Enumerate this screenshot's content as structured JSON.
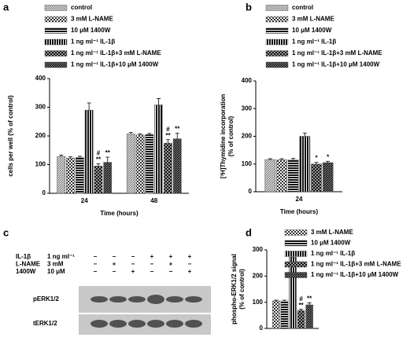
{
  "chart_data": [
    {
      "type": "bar",
      "panel_label": "a",
      "ylabel": [
        "cells per well (% of control)"
      ],
      "xlabel": "Time (hours)",
      "categories": [
        "24",
        "48"
      ],
      "ylim": [
        0,
        400
      ],
      "yticks": [
        0,
        100,
        200,
        300,
        400
      ],
      "series": [
        {
          "name": "control",
          "pattern": "diag-light",
          "values": [
            128,
            207
          ],
          "errors": [
            5,
            5
          ]
        },
        {
          "name": "3 mM L-NAME",
          "pattern": "checker",
          "values": [
            123,
            203
          ],
          "errors": [
            4,
            4
          ]
        },
        {
          "name": "10 μM 1400W",
          "pattern": "horizontal",
          "values": [
            125,
            205
          ],
          "errors": [
            4,
            4
          ]
        },
        {
          "name": "1 ng ml⁻¹ IL-1β",
          "pattern": "vertical",
          "values": [
            290,
            308
          ],
          "errors": [
            25,
            22
          ]
        },
        {
          "name": "1 ng ml⁻¹ IL-1β+3 mM L-NAME",
          "pattern": "checker-dark",
          "values": [
            95,
            175
          ],
          "errors": [
            8,
            12
          ],
          "labels": [
            [
              "#",
              "**"
            ],
            [
              "#",
              "**"
            ]
          ]
        },
        {
          "name": "1 ng ml⁻¹ IL-1β+10 μM 1400W",
          "pattern": "diag-dark",
          "values": [
            108,
            190
          ],
          "errors": [
            18,
            20
          ],
          "labels": [
            [
              "**"
            ],
            [
              "**"
            ]
          ]
        }
      ]
    },
    {
      "type": "bar",
      "panel_label": "b",
      "ylabel": [
        "[³H]Thymidine incorporation",
        "(% of control)"
      ],
      "xlabel": "Time (hours)",
      "categories": [
        "24"
      ],
      "ylim": [
        0,
        400
      ],
      "yticks": [
        0,
        100,
        200,
        300,
        400
      ],
      "series": [
        {
          "name": "control",
          "pattern": "diag-light",
          "values": [
            116
          ],
          "errors": [
            3
          ]
        },
        {
          "name": "3 mM L-NAME",
          "pattern": "checker",
          "values": [
            115
          ],
          "errors": [
            4
          ]
        },
        {
          "name": "10 μM 1400W",
          "pattern": "horizontal",
          "values": [
            115
          ],
          "errors": [
            5
          ]
        },
        {
          "name": "1 ng ml⁻¹ IL-1β",
          "pattern": "vertical",
          "values": [
            200
          ],
          "errors": [
            12
          ]
        },
        {
          "name": "1 ng ml⁻¹ IL-1β+3 mM L-NAME",
          "pattern": "checker-dark",
          "values": [
            100
          ],
          "errors": [
            6
          ],
          "labels": [
            [
              "*"
            ]
          ]
        },
        {
          "name": "1 ng ml⁻¹ IL-1β+10 μM 1400W",
          "pattern": "diag-dark",
          "values": [
            105
          ],
          "errors": [
            5
          ],
          "labels": [
            [
              "*"
            ]
          ]
        }
      ]
    },
    {
      "type": "bar",
      "panel_label": "d",
      "ylabel": [
        "phospho-ERK1/2 signal",
        "(% of control)"
      ],
      "categories": [
        null
      ],
      "ylim": [
        0,
        300
      ],
      "yticks": [
        0,
        100,
        200,
        300
      ],
      "series": [
        {
          "name": "3 mM L-NAME",
          "pattern": "checker",
          "values": [
            105
          ],
          "errors": [
            3
          ]
        },
        {
          "name": "10 μM 1400W",
          "pattern": "horizontal",
          "values": [
            105
          ],
          "errors": [
            3
          ]
        },
        {
          "name": "1 ng ml⁻¹ IL-1β",
          "pattern": "vertical",
          "values": [
            272
          ],
          "errors": [
            4
          ]
        },
        {
          "name": "1 ng ml⁻¹ IL-1β+3 mM L-NAME",
          "pattern": "checker-dark",
          "values": [
            68
          ],
          "errors": [
            5
          ],
          "labels": [
            [
              "#",
              "**"
            ]
          ]
        },
        {
          "name": "1 ng ml⁻¹ IL-1β+10 μM 1400W",
          "pattern": "diag-dark",
          "values": [
            90
          ],
          "errors": [
            8
          ],
          "labels": [
            [
              "**"
            ]
          ]
        }
      ]
    }
  ],
  "blot": {
    "panel_label": "c",
    "treatments": [
      {
        "name": "IL-1β",
        "dose": "1 ng ml⁻¹",
        "signs": [
          "−",
          "−",
          "−",
          "+",
          "+",
          "+"
        ]
      },
      {
        "name": "L-NAME",
        "dose": "3 mM",
        "signs": [
          "−",
          "+",
          "−",
          "−",
          "+",
          "−"
        ]
      },
      {
        "name": "1400W",
        "dose": "10 μM",
        "signs": [
          "−",
          "−",
          "+",
          "−",
          "−",
          "+"
        ]
      }
    ],
    "bands": [
      "pERK1/2",
      "tERK1/2"
    ]
  }
}
